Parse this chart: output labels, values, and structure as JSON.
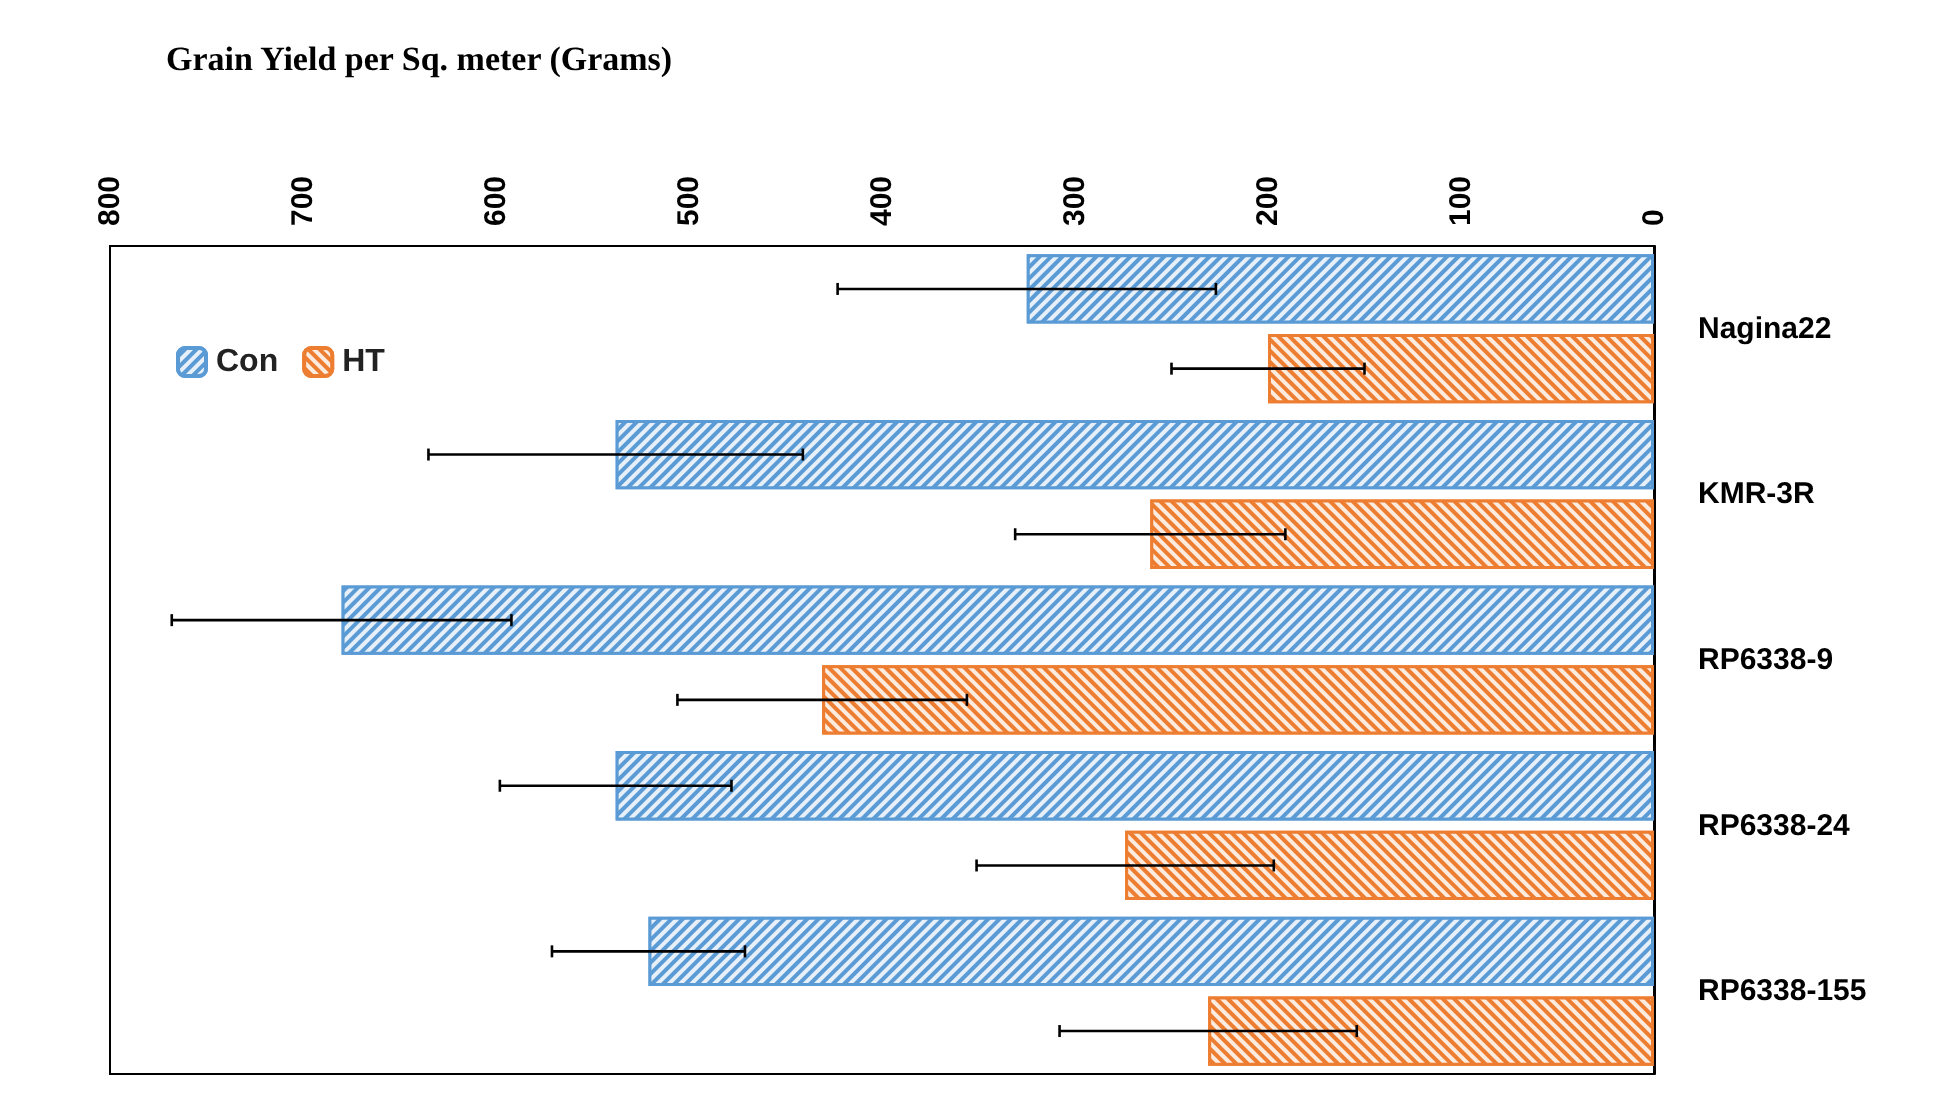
{
  "chart_data": {
    "type": "bar",
    "orientation": "horizontal",
    "xlabel": "Grain Yield per Sq. meter (Grams)",
    "categories": [
      "Nagina22",
      "KMR-3R",
      "RP6338-9",
      "RP6338-24",
      "RP6338-155"
    ],
    "series": [
      {
        "name": "Con",
        "color": "#5b9bd5",
        "values": [
          325,
          538,
          680,
          538,
          521
        ],
        "errors": [
          98,
          97,
          88,
          60,
          50
        ]
      },
      {
        "name": "HT",
        "color": "#ed7d31",
        "values": [
          200,
          261,
          431,
          274,
          231
        ],
        "errors": [
          50,
          70,
          75,
          77,
          77
        ]
      }
    ],
    "xlim": [
      800,
      0
    ],
    "xticks": [
      800,
      700,
      600,
      500,
      400,
      300,
      200,
      100,
      0
    ],
    "grid": false,
    "legend": "top left"
  }
}
